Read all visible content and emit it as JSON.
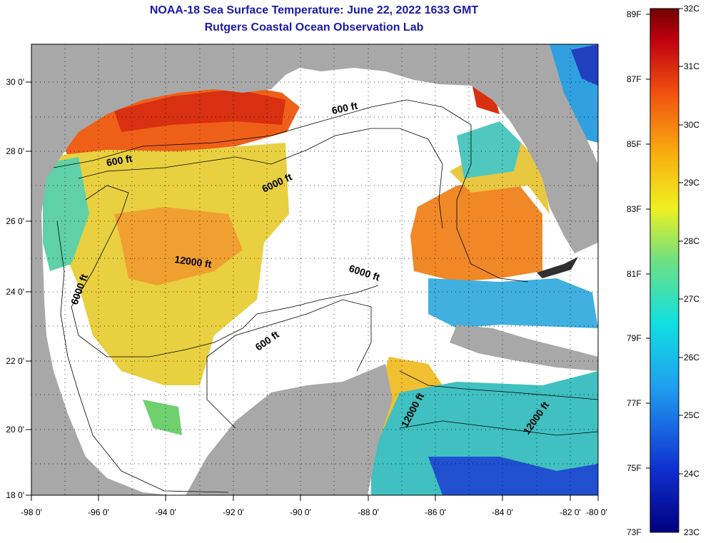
{
  "title": {
    "line1": "NOAA-18 Sea Surface Temperature:  June 22, 2022 1633 GMT",
    "line2": "Rutgers Coastal Ocean Observation Lab"
  },
  "map": {
    "region": "Gulf of Mexico",
    "lon_range": [
      -98,
      -80
    ],
    "lat_range": [
      18,
      31
    ],
    "x_ticks": [
      "-98 0'",
      "-96 0'",
      "-94 0'",
      "-92 0'",
      "-90 0'",
      "-88 0'",
      "-86 0'",
      "-84 0'",
      "-82 0'",
      "-80 0'"
    ],
    "y_ticks": [
      "30 0'",
      "28 0'",
      "26 0'",
      "24 0'",
      "22 0'",
      "20 0'",
      "18 0'"
    ],
    "contour_labels": [
      "600 ft",
      "600 ft",
      "6000 ft",
      "12000 ft",
      "6000 ft",
      "6000 ft",
      "600 ft",
      "12000 ft",
      "12000 ft"
    ],
    "colors": {
      "land": "#a8a8a8",
      "no_data": "#ffffff",
      "warm": "#e84a10",
      "mid": "#f5c020",
      "cool": "#30c8e0",
      "cold": "#2030c0"
    }
  },
  "colorbar": {
    "f_labels": [
      "89F",
      "87F",
      "85F",
      "83F",
      "81F",
      "79F",
      "77F",
      "75F",
      "73F"
    ],
    "c_labels": [
      "32C",
      "31C",
      "30C",
      "29C",
      "28C",
      "27C",
      "26C",
      "25C",
      "24C",
      "23C"
    ],
    "range_c": [
      23,
      32
    ]
  }
}
